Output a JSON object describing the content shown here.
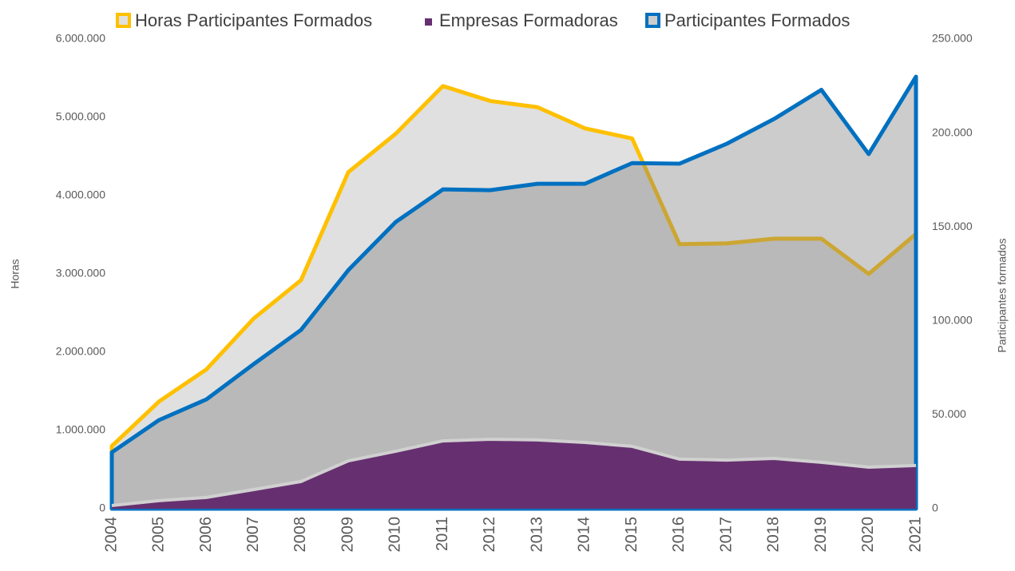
{
  "chart_data": {
    "type": "area",
    "categories": [
      "2004",
      "2005",
      "2006",
      "2007",
      "2008",
      "2009",
      "2010",
      "2011",
      "2012",
      "2013",
      "2014",
      "2015",
      "2016",
      "2017",
      "2018",
      "2019",
      "2020",
      "2021"
    ],
    "series": [
      {
        "name": "Horas Participantes Formados",
        "color": "#ffc000",
        "fill": "#e0e0e0",
        "axis": "y",
        "values": [
          800000,
          1370000,
          1780000,
          2430000,
          2920000,
          4300000,
          4790000,
          5400000,
          5210000,
          5130000,
          4860000,
          4730000,
          3380000,
          3390000,
          3450000,
          3450000,
          3000000,
          3510000
        ]
      },
      {
        "name": "Empresas Formadoras",
        "color": "#663070",
        "fill": "#663070",
        "axis": "y2",
        "values": [
          1700,
          4300,
          6000,
          10200,
          14500,
          25500,
          30600,
          36100,
          37000,
          36600,
          35300,
          33200,
          26400,
          25900,
          26800,
          24700,
          22100,
          23000
        ]
      },
      {
        "name": "Participantes Formados",
        "color": "#0070c0",
        "fill": "rgba(128,128,128,0.4)",
        "axis": "y2",
        "values": [
          30000,
          47200,
          58200,
          77000,
          95200,
          127000,
          152600,
          170000,
          169600,
          173000,
          173000,
          184000,
          183700,
          194300,
          207500,
          223000,
          188800,
          230000
        ]
      }
    ],
    "ylabel": "Horas",
    "y2label": "Participantes formados",
    "ylim": [
      0,
      6000000
    ],
    "yticks": [
      0,
      {
        "value": 1000000,
        "label": "1.000.000"
      },
      {
        "value": 2000000,
        "label": "2.000.000"
      },
      {
        "value": 3000000,
        "label": "3.000.000"
      },
      {
        "value": 4000000,
        "label": "4.000.000"
      },
      {
        "value": 5000000,
        "label": "5.000.000"
      },
      {
        "value": 6000000,
        "label": "6.000.000"
      }
    ],
    "y2lim": [
      0,
      250000
    ],
    "y2ticks": [
      0,
      {
        "value": 50000,
        "label": "50.000"
      },
      {
        "value": 100000,
        "label": "100.000"
      },
      {
        "value": 150000,
        "label": "150.000"
      },
      {
        "value": 200000,
        "label": "200.000"
      },
      {
        "value": 250000,
        "label": "250.000"
      }
    ],
    "legend": "top"
  }
}
